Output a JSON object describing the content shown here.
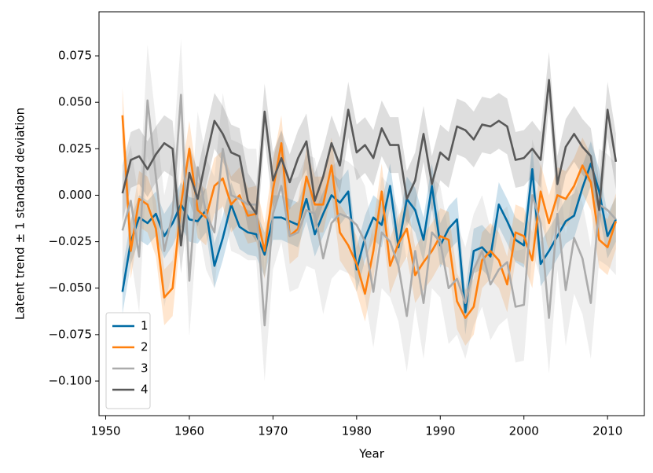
{
  "chart_data": {
    "type": "line",
    "xlabel": "Year",
    "ylabel": "Latent trend ± 1 standard deviation",
    "x": [
      1952,
      1953,
      1954,
      1955,
      1956,
      1957,
      1958,
      1959,
      1960,
      1961,
      1962,
      1963,
      1964,
      1965,
      1966,
      1967,
      1968,
      1969,
      1970,
      1971,
      1972,
      1973,
      1974,
      1975,
      1976,
      1977,
      1978,
      1979,
      1980,
      1981,
      1982,
      1983,
      1984,
      1985,
      1986,
      1987,
      1988,
      1989,
      1990,
      1991,
      1992,
      1993,
      1994,
      1995,
      1996,
      1997,
      1998,
      1999,
      2000,
      2001,
      2002,
      2003,
      2004,
      2005,
      2006,
      2007,
      2008,
      2009,
      2010,
      2011
    ],
    "series": [
      {
        "name": "1",
        "color": "#006ba4",
        "sd": 0.012,
        "values": [
          -0.052,
          -0.025,
          -0.012,
          -0.015,
          -0.01,
          -0.022,
          -0.015,
          -0.005,
          -0.013,
          -0.014,
          -0.008,
          -0.038,
          -0.023,
          -0.005,
          -0.017,
          -0.02,
          -0.021,
          -0.032,
          -0.012,
          -0.012,
          -0.014,
          -0.016,
          -0.002,
          -0.021,
          -0.01,
          0.0,
          -0.004,
          0.002,
          -0.04,
          -0.023,
          -0.012,
          -0.016,
          0.005,
          -0.028,
          -0.002,
          -0.008,
          -0.024,
          0.005,
          -0.027,
          -0.018,
          -0.013,
          -0.063,
          -0.03,
          -0.028,
          -0.033,
          -0.005,
          -0.014,
          -0.024,
          -0.027,
          0.014,
          -0.037,
          -0.03,
          -0.022,
          -0.014,
          -0.011,
          0.004,
          0.017,
          0.002,
          -0.022,
          -0.013
        ]
      },
      {
        "name": "2",
        "color": "#ff800e",
        "sd": 0.015,
        "values": [
          0.043,
          -0.03,
          -0.002,
          -0.005,
          -0.018,
          -0.055,
          -0.05,
          -0.005,
          0.025,
          -0.008,
          -0.012,
          0.005,
          0.009,
          -0.005,
          0.0,
          -0.011,
          -0.01,
          -0.03,
          0.003,
          0.028,
          -0.022,
          -0.018,
          0.01,
          -0.005,
          -0.005,
          0.016,
          -0.02,
          -0.027,
          -0.037,
          -0.053,
          -0.03,
          0.002,
          -0.038,
          -0.026,
          -0.018,
          -0.043,
          -0.036,
          -0.03,
          -0.022,
          -0.024,
          -0.057,
          -0.066,
          -0.06,
          -0.035,
          -0.03,
          -0.035,
          -0.048,
          -0.02,
          -0.022,
          -0.035,
          0.002,
          -0.015,
          0.0,
          -0.002,
          0.005,
          0.016,
          0.007,
          -0.024,
          -0.028,
          -0.014
        ]
      },
      {
        "name": "3",
        "color": "#ababab",
        "sd": 0.03,
        "values": [
          -0.019,
          -0.003,
          -0.033,
          0.051,
          0.01,
          -0.03,
          -0.01,
          0.054,
          -0.046,
          0.015,
          -0.01,
          -0.02,
          0.025,
          0.0,
          -0.002,
          -0.005,
          -0.005,
          -0.07,
          -0.01,
          0.005,
          -0.022,
          -0.02,
          -0.008,
          -0.01,
          -0.034,
          -0.015,
          -0.01,
          -0.012,
          -0.016,
          -0.025,
          -0.052,
          -0.02,
          -0.025,
          -0.038,
          -0.065,
          -0.03,
          -0.058,
          -0.02,
          -0.025,
          -0.05,
          -0.045,
          -0.058,
          -0.04,
          -0.03,
          -0.048,
          -0.04,
          -0.036,
          -0.06,
          -0.059,
          0.0,
          -0.015,
          -0.066,
          -0.01,
          -0.051,
          -0.023,
          -0.034,
          -0.058,
          -0.005,
          -0.008,
          -0.013
        ]
      },
      {
        "name": "4",
        "color": "#595959",
        "sd": 0.015,
        "values": [
          0.001,
          0.019,
          0.021,
          0.014,
          0.022,
          0.028,
          0.025,
          -0.027,
          0.012,
          -0.002,
          0.02,
          0.04,
          0.033,
          0.023,
          0.021,
          -0.003,
          -0.01,
          0.045,
          0.008,
          0.02,
          0.007,
          0.02,
          0.029,
          -0.003,
          0.01,
          0.028,
          0.016,
          0.046,
          0.023,
          0.027,
          0.02,
          0.036,
          0.027,
          0.027,
          -0.002,
          0.008,
          0.033,
          0.006,
          0.023,
          0.019,
          0.037,
          0.035,
          0.03,
          0.038,
          0.037,
          0.04,
          0.037,
          0.019,
          0.02,
          0.025,
          0.019,
          0.062,
          0.006,
          0.026,
          0.033,
          0.026,
          0.021,
          -0.008,
          0.046,
          0.018
        ]
      }
    ],
    "xlim": [
      1949.2,
      2014.4
    ],
    "xticks": [
      1950,
      1960,
      1970,
      1980,
      1990,
      2000,
      2010
    ],
    "ylim": [
      -0.1186,
      0.0987
    ],
    "yticks": [
      {
        "value": -0.1,
        "label": "−0.100"
      },
      {
        "value": -0.075,
        "label": "−0.075"
      },
      {
        "value": -0.05,
        "label": "−0.050"
      },
      {
        "value": -0.025,
        "label": "−0.025"
      },
      {
        "value": 0,
        "label": "0.000"
      },
      {
        "value": 0.025,
        "label": "0.025"
      },
      {
        "value": 0.05,
        "label": "0.050"
      },
      {
        "value": 0.075,
        "label": "0.075"
      }
    ],
    "legend": "lower left",
    "grid": false
  }
}
